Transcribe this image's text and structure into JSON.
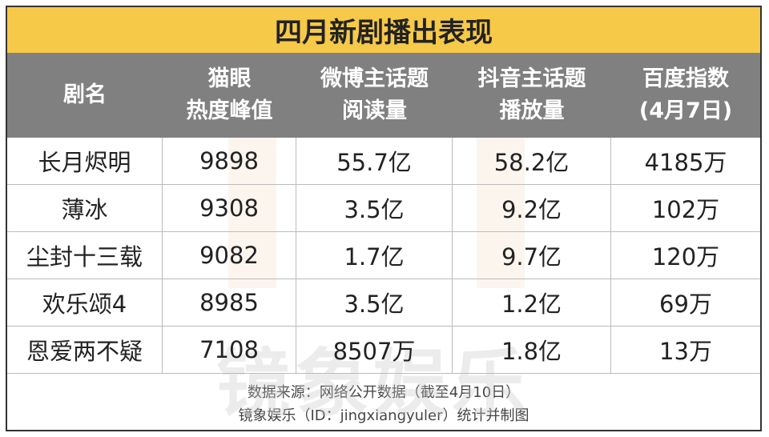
{
  "title": "四月新剧播出表现",
  "table": {
    "header": [
      [
        "剧名"
      ],
      [
        "猫眼",
        "热度峰值"
      ],
      [
        "微博主话题",
        "阅读量"
      ],
      [
        "抖音主话题",
        "播放量"
      ],
      [
        "百度指数",
        "(4月7日)"
      ]
    ],
    "rows": [
      [
        "长月烬明",
        "9898",
        "55.7亿",
        "58.2亿",
        "4185万"
      ],
      [
        "薄冰",
        "9308",
        "3.5亿",
        "9.2亿",
        "102万"
      ],
      [
        "尘封十三载",
        "9082",
        "1.7亿",
        "9.7亿",
        "120万"
      ],
      [
        "欢乐颂4",
        "8985",
        "3.5亿",
        "1.2亿",
        "69万"
      ],
      [
        "恩爱两不疑",
        "7108",
        "8507万",
        "1.8亿",
        "13万"
      ]
    ]
  },
  "footer": [
    "数据来源：网络公开数据（截至4月10日）",
    "镜象娱乐（ID：jingxiangyuler）统计并制图"
  ],
  "watermark": "镜象娱乐"
}
